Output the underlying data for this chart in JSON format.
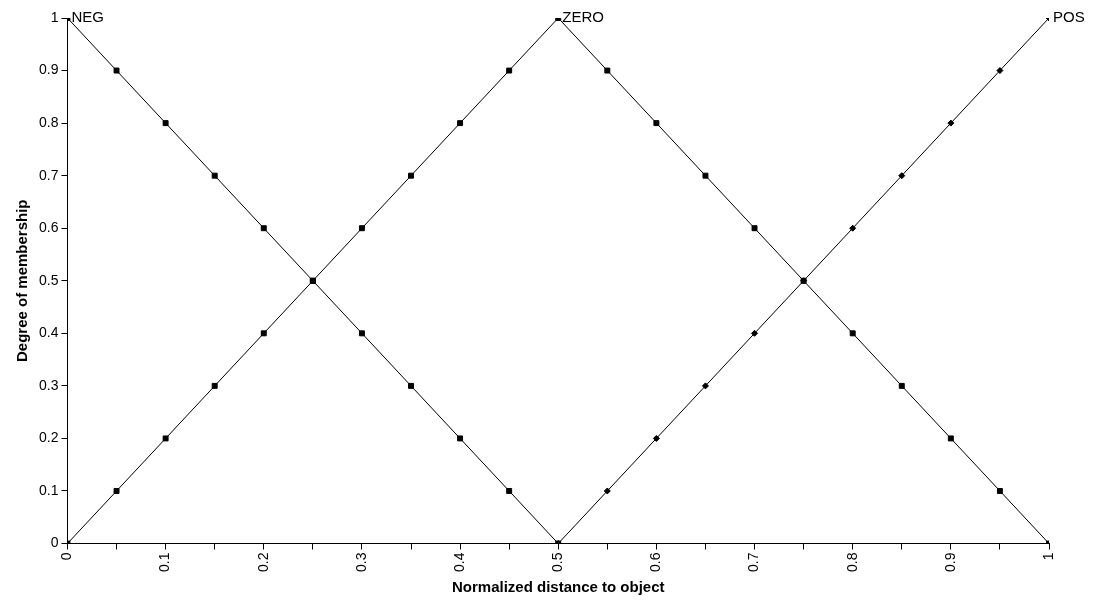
{
  "chart_data": {
    "type": "line",
    "xlabel": "Normalized distance to object",
    "ylabel": "Degree of membership",
    "xlim": [
      0,
      1
    ],
    "ylim": [
      0,
      1
    ],
    "xticks": [
      0,
      {
        "value": 0.05,
        "label": null
      },
      0.1,
      {
        "value": 0.15,
        "label": null
      },
      0.2,
      {
        "value": 0.25,
        "label": null
      },
      0.3,
      {
        "value": 0.35,
        "label": null
      },
      0.4,
      {
        "value": 0.45,
        "label": null
      },
      0.5,
      {
        "value": 0.55,
        "label": null
      },
      0.6,
      {
        "value": 0.65,
        "label": null
      },
      0.7,
      {
        "value": 0.75,
        "label": null
      },
      0.8,
      {
        "value": 0.85,
        "label": null
      },
      0.9,
      {
        "value": 0.95,
        "label": null
      },
      1
    ],
    "yticks": [
      0,
      0.1,
      0.2,
      0.3,
      0.4,
      0.5,
      0.6,
      0.7,
      0.8,
      0.9,
      1
    ],
    "grid": false,
    "legend": false,
    "series": [
      {
        "name": "NEG",
        "color": "#000000",
        "marker": "square",
        "x": [
          0,
          0.05,
          0.1,
          0.15,
          0.2,
          0.25,
          0.3,
          0.35,
          0.4,
          0.45,
          0.5
        ],
        "values": [
          1,
          0.9,
          0.8,
          0.7,
          0.6,
          0.5,
          0.4,
          0.3,
          0.2,
          0.1,
          0
        ]
      },
      {
        "name": "ZERO",
        "color": "#000000",
        "marker": "square",
        "x": [
          0,
          0.05,
          0.1,
          0.15,
          0.2,
          0.25,
          0.3,
          0.35,
          0.4,
          0.45,
          0.5,
          0.55,
          0.6,
          0.65,
          0.7,
          0.75,
          0.8,
          0.85,
          0.9,
          0.95,
          1
        ],
        "values": [
          0,
          0.1,
          0.2,
          0.3,
          0.4,
          0.5,
          0.6,
          0.7,
          0.8,
          0.9,
          1,
          0.9,
          0.8,
          0.7,
          0.6,
          0.5,
          0.4,
          0.3,
          0.2,
          0.1,
          0
        ]
      },
      {
        "name": "POS",
        "color": "#000000",
        "marker": "diamond",
        "x": [
          0.5,
          0.55,
          0.6,
          0.65,
          0.7,
          0.75,
          0.8,
          0.85,
          0.9,
          0.95,
          1
        ],
        "values": [
          0,
          0.1,
          0.2,
          0.3,
          0.4,
          0.5,
          0.6,
          0.7,
          0.8,
          0.9,
          1
        ]
      }
    ]
  }
}
